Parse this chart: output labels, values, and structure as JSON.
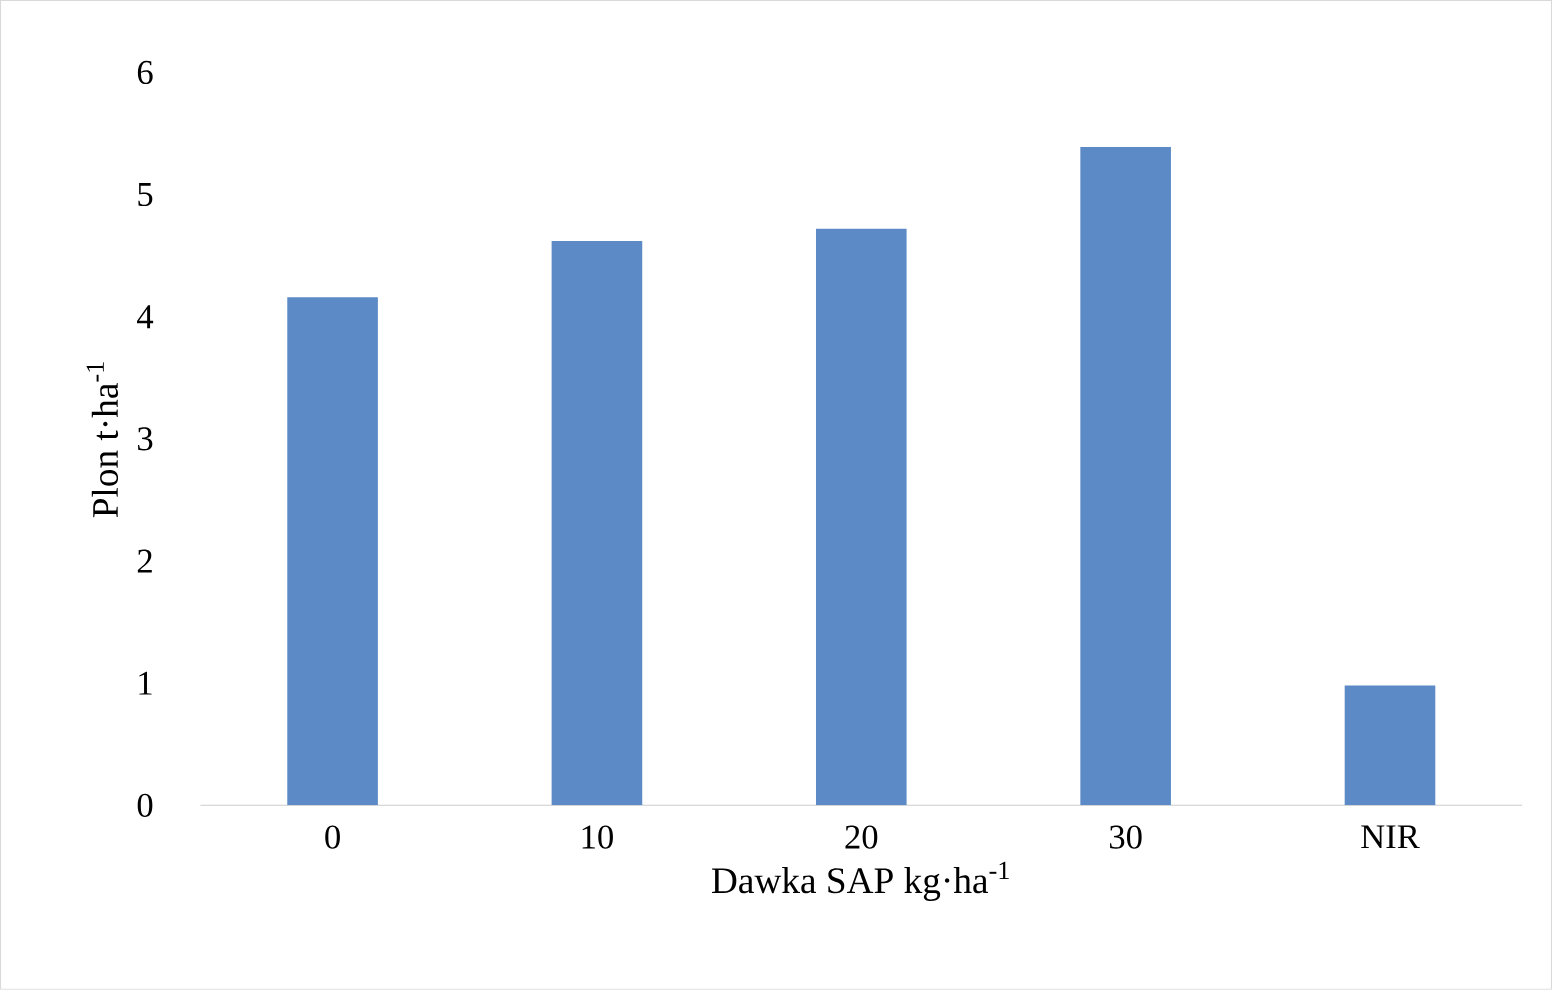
{
  "chart_data": {
    "type": "bar",
    "xlabel": "Dawka SAP kg·ha$^{-1}$",
    "ylabel": "Plon t·ha$^{-1}$",
    "categories": [
      "0",
      "10",
      "20",
      "30",
      "NIR"
    ],
    "values": [
      4.16,
      4.62,
      4.72,
      5.39,
      0.98
    ],
    "color": "#5b8ac6",
    "ylim": [
      0,
      6
    ],
    "yticks": [
      0,
      1,
      2,
      3,
      4,
      5,
      6
    ]
  }
}
